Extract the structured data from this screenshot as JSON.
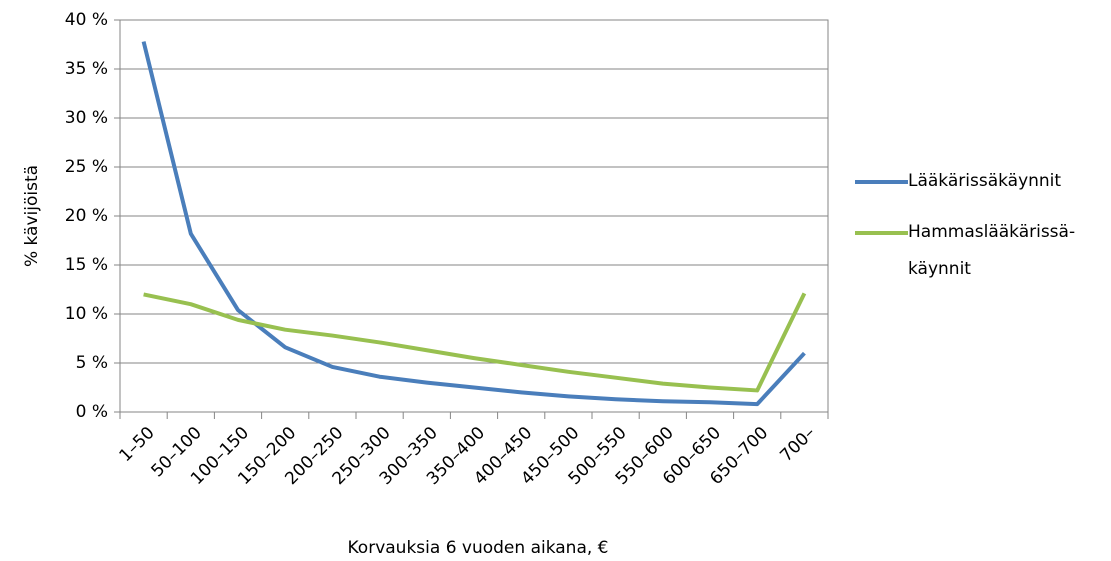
{
  "chart_data": {
    "type": "line",
    "xlabel": "Korvauksia 6 vuoden aikana, €",
    "ylabel": "% kävijöistä",
    "categories": [
      "1–50",
      "50–100",
      "100–150",
      "150–200",
      "200–250",
      "250–300",
      "300–350",
      "350–400",
      "400–450",
      "450–500",
      "500–550",
      "550–600",
      "600–650",
      "650–700",
      "700–"
    ],
    "series": [
      {
        "name": "Lääkärissäkäynnit",
        "color": "#4a7ebb",
        "values": [
          37.8,
          18.2,
          10.4,
          6.6,
          4.6,
          3.6,
          3.0,
          2.5,
          2.0,
          1.6,
          1.3,
          1.1,
          1.0,
          0.8,
          6.0
        ]
      },
      {
        "name": "Hammaslääkärissä-käynnit",
        "color": "#98c050",
        "values": [
          12.0,
          11.0,
          9.4,
          8.4,
          7.8,
          7.1,
          6.3,
          5.5,
          4.8,
          4.1,
          3.5,
          2.9,
          2.5,
          2.2,
          12.1
        ]
      }
    ],
    "ylim": [
      0,
      40
    ],
    "yticks": [
      {
        "value": 0,
        "label": "0 %"
      },
      {
        "value": 5,
        "label": "5 %"
      },
      {
        "value": 10,
        "label": "10 %"
      },
      {
        "value": 15,
        "label": "15 %"
      },
      {
        "value": 20,
        "label": "20 %"
      },
      {
        "value": 25,
        "label": "25 %"
      },
      {
        "value": 30,
        "label": "30 %"
      },
      {
        "value": 35,
        "label": "35 %"
      },
      {
        "value": 40,
        "label": "40 %"
      }
    ],
    "grid": true,
    "legend": "right"
  }
}
